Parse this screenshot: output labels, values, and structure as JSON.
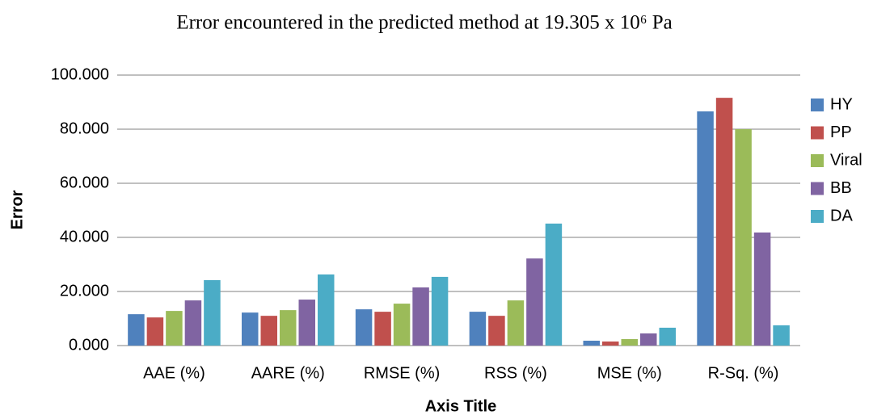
{
  "chart_data": {
    "type": "bar",
    "title": "Error encountered in the predicted method at 19.305 x 10⁶ Pa",
    "y_label": "Error",
    "x_label": "Axis Title",
    "categories": [
      "AAE (%)",
      "AARE (%)",
      "RMSE (%)",
      "RSS (%)",
      "MSE (%)",
      "R-Sq. (%)"
    ],
    "series": [
      {
        "name": "HY",
        "color": "#4f81bd",
        "values": [
          11.6,
          12.2,
          13.4,
          12.5,
          1.8,
          86.6
        ]
      },
      {
        "name": "PP",
        "color": "#c0504d",
        "values": [
          10.4,
          11.0,
          12.5,
          11.0,
          1.5,
          91.6
        ]
      },
      {
        "name": "Viral",
        "color": "#9bbb59",
        "values": [
          12.8,
          13.1,
          15.5,
          16.7,
          2.4,
          80.0
        ]
      },
      {
        "name": "BB",
        "color": "#8064a2",
        "values": [
          16.7,
          17.0,
          21.5,
          32.2,
          4.5,
          41.8
        ]
      },
      {
        "name": "DA",
        "color": "#4bacc6",
        "values": [
          24.2,
          26.3,
          25.4,
          45.1,
          6.6,
          7.5
        ]
      }
    ],
    "ylim": [
      0,
      100
    ],
    "yticks": [
      {
        "value": 0,
        "label": "0.000"
      },
      {
        "value": 20,
        "label": "20.000"
      },
      {
        "value": 40,
        "label": "40.000"
      },
      {
        "value": 60,
        "label": "60.000"
      },
      {
        "value": 80,
        "label": "80.000"
      },
      {
        "value": 100,
        "label": "100.000"
      }
    ],
    "grid": true,
    "legend": "right"
  }
}
